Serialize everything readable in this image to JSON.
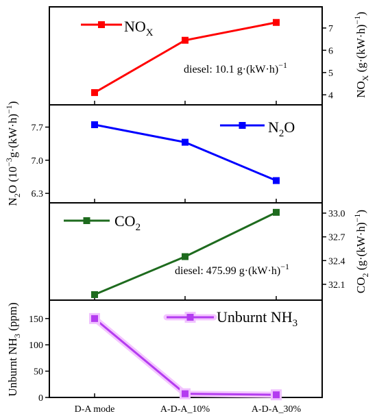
{
  "chart_data": [
    {
      "type": "line",
      "panel": "nox",
      "categories": [
        "D-A mode",
        "A-D-A_10%",
        "A-D-A_30%"
      ],
      "series": [
        {
          "name": "NOX",
          "values": [
            4.1,
            6.45,
            7.25
          ],
          "color": "#ff0000",
          "marker": "square"
        }
      ],
      "ylabel": "NOX (g·(kW·h)−1)",
      "ylim": [
        3.55,
        7.95
      ],
      "yticks": [
        4,
        5,
        6,
        7
      ],
      "yaxis_side": "right",
      "annotation": "diesel: 10.1 g·(kW·h)−1",
      "legend_position": "top-left"
    },
    {
      "type": "line",
      "panel": "n2o",
      "categories": [
        "D-A mode",
        "A-D-A_10%",
        "A-D-A_30%"
      ],
      "series": [
        {
          "name": "N2O",
          "values": [
            7.75,
            7.38,
            6.57
          ],
          "color": "#0000ff",
          "marker": "square"
        }
      ],
      "ylabel": "N2O (10−3g·(kW·h)−1)",
      "ylim": [
        6.1,
        8.17
      ],
      "yticks": [
        6.3,
        7.0,
        7.7
      ],
      "ytick_labels": [
        "6.3",
        "7.0",
        "7.7"
      ],
      "yaxis_side": "left",
      "legend_position": "top-right"
    },
    {
      "type": "line",
      "panel": "co2",
      "categories": [
        "D-A mode",
        "A-D-A_10%",
        "A-D-A_30%"
      ],
      "series": [
        {
          "name": "CO2",
          "values": [
            31.97,
            32.45,
            33.01
          ],
          "color": "#1e6b1e",
          "marker": "square"
        }
      ],
      "ylabel": "CO2 (g·(kW·h)−1)",
      "ylim": [
        31.9,
        33.13
      ],
      "yticks": [
        32.1,
        32.4,
        32.7,
        33.0
      ],
      "ytick_labels": [
        "32.1",
        "32.4",
        "32.7",
        "33.0"
      ],
      "yaxis_side": "right",
      "annotation": "diesel: 475.99 g·(kW·h)−1",
      "legend_position": "top-left"
    },
    {
      "type": "line",
      "panel": "nh3",
      "categories": [
        "D-A mode",
        "A-D-A_10%",
        "A-D-A_30%"
      ],
      "series": [
        {
          "name": "Unburnt NH3",
          "values": [
            150,
            7,
            5
          ],
          "color": "#b43cf0",
          "marker": "square"
        }
      ],
      "ylabel": "Unburnt NH3 (ppm)",
      "ylim": [
        0,
        185
      ],
      "yticks": [
        0,
        50,
        100,
        150
      ],
      "yaxis_side": "left",
      "legend_position": "top-right"
    }
  ],
  "x_tick_labels": [
    "D-A mode",
    "A-D-A_10%",
    "A-D-A_30%"
  ],
  "text": {
    "nox_legend_main": "NO",
    "nox_legend_sub": "X",
    "nox_annot_main": "diesel: 10.1 g·(kW·h)",
    "nox_annot_sup": "−1",
    "nox_ylabel_a": "NO",
    "nox_ylabel_sub": "X",
    "nox_ylabel_b": " (g·(kW·h)",
    "nox_ylabel_sup": "−1",
    "nox_ylabel_c": ")",
    "n2o_legend_a": "N",
    "n2o_legend_sub": "2",
    "n2o_legend_b": "O",
    "n2o_ylabel_a": "N",
    "n2o_ylabel_sub": "2",
    "n2o_ylabel_b": "O (10",
    "n2o_ylabel_sup1": "−3",
    "n2o_ylabel_c": "g·(kW·h)",
    "n2o_ylabel_sup2": "−1",
    "n2o_ylabel_d": ")",
    "co2_legend_a": "CO",
    "co2_legend_sub": "2",
    "co2_annot_main": "diesel: 475.99 g·(kW·h)",
    "co2_annot_sup": "−1",
    "co2_ylabel_a": "CO",
    "co2_ylabel_sub": "2",
    "co2_ylabel_b": " (g·(kW·h)",
    "co2_ylabel_sup": "−1",
    "co2_ylabel_c": ")",
    "nh3_legend_a": "Unburnt NH",
    "nh3_legend_sub": "3",
    "nh3_ylabel_a": "Unburnt NH",
    "nh3_ylabel_sub": "3",
    "nh3_ylabel_b": " (ppm)"
  }
}
